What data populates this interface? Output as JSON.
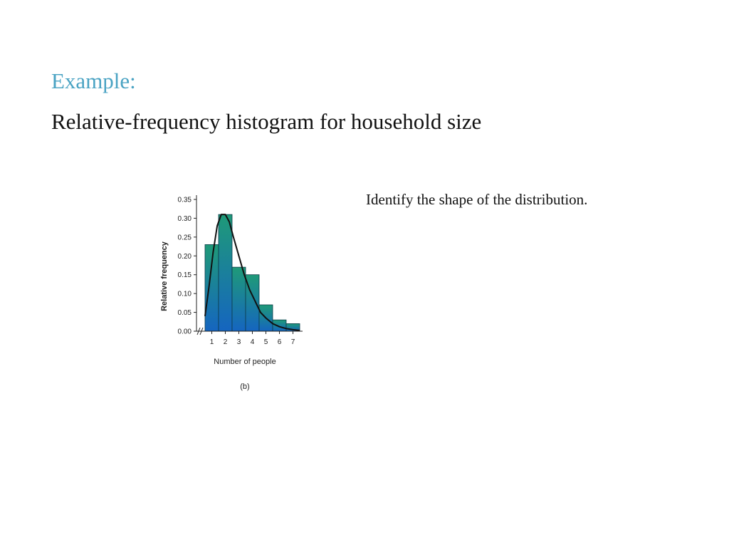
{
  "slide": {
    "heading": "Example:",
    "subheading": "Relative-frequency histogram for household size",
    "prompt": "Identify the shape of the distribution."
  },
  "colors": {
    "heading": "#4aa3c3",
    "bar_top": "#1f9a78",
    "bar_bottom": "#1565c0",
    "curve": "#111111"
  },
  "chart_data": {
    "type": "bar",
    "categories": [
      "1",
      "2",
      "3",
      "4",
      "5",
      "6",
      "7"
    ],
    "values": [
      0.23,
      0.31,
      0.17,
      0.15,
      0.07,
      0.03,
      0.02
    ],
    "curve": {
      "x": [
        0.5,
        0.8,
        1.1,
        1.4,
        1.7,
        2.0,
        2.3,
        2.6,
        3.0,
        3.4,
        3.8,
        4.2,
        4.6,
        5.0,
        5.5,
        6.0,
        6.5,
        7.0,
        7.5
      ],
      "y": [
        0.04,
        0.12,
        0.21,
        0.28,
        0.31,
        0.31,
        0.29,
        0.25,
        0.2,
        0.15,
        0.11,
        0.08,
        0.05,
        0.035,
        0.02,
        0.012,
        0.007,
        0.004,
        0.002
      ]
    },
    "ylim": [
      0,
      0.35
    ],
    "yticks": [
      "0.00",
      "0.05",
      "0.10",
      "0.15",
      "0.20",
      "0.25",
      "0.30",
      "0.35"
    ],
    "xlabel": "Number of people",
    "ylabel": "Relative frequency",
    "caption": "(b)",
    "grid": false
  }
}
